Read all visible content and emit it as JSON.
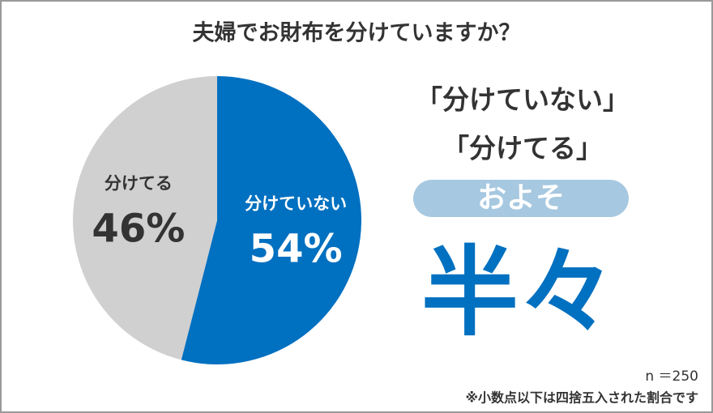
{
  "chart_data": {
    "type": "pie",
    "title": "夫婦でお財布を分けていますか？",
    "categories": [
      "分けていない",
      "分けてる"
    ],
    "values": [
      54,
      46
    ],
    "value_labels": [
      "54%",
      "46%"
    ],
    "colors": [
      "#0070c0",
      "#d0d0d0"
    ],
    "headline": [
      "「分けていない」",
      "「分けてる」"
    ],
    "badge": "およそ",
    "conclusion": "半々",
    "sample_size": "n ＝250",
    "note": "※小数点以下は四捨五入された割合です"
  }
}
